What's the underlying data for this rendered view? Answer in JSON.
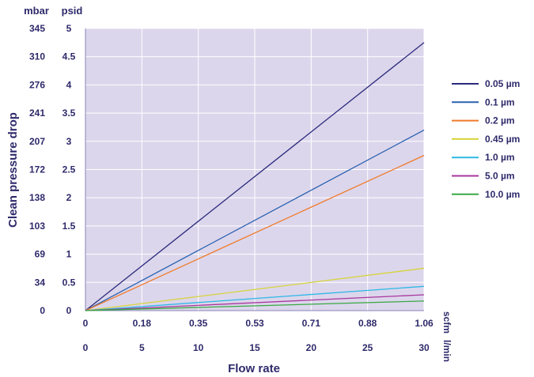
{
  "chart_data": {
    "type": "line",
    "ylabel": "Clean pressure drop",
    "xlabel": "Flow rate",
    "y_units": [
      "mbar",
      "psid"
    ],
    "x_units": [
      "scfm",
      "l/min"
    ],
    "psid_ticks": [
      "0",
      "0.5",
      "1",
      "1.5",
      "2",
      "2.5",
      "3",
      "3.5",
      "4",
      "4.5",
      "5"
    ],
    "mbar_ticks": [
      "0",
      "34",
      "69",
      "103",
      "138",
      "172",
      "207",
      "241",
      "276",
      "310",
      "345"
    ],
    "scfm_ticks": [
      "0",
      "0.18",
      "0.35",
      "0.53",
      "0.71",
      "0.88",
      "1.06"
    ],
    "lmin_ticks": [
      "0",
      "5",
      "10",
      "15",
      "20",
      "25",
      "30"
    ],
    "xlim": [
      0,
      30
    ],
    "ylim": [
      0,
      5
    ],
    "grid": true,
    "legend_position": "right",
    "x": [
      0,
      30
    ],
    "series": [
      {
        "name": "0.05 µm",
        "values": [
          0,
          4.75
        ],
        "color": "#2b2a7c"
      },
      {
        "name": "0.1 µm",
        "values": [
          0,
          3.2
        ],
        "color": "#2a62b0"
      },
      {
        "name": "0.2 µm",
        "values": [
          0,
          2.75
        ],
        "color": "#f07b2a"
      },
      {
        "name": "0.45 µm",
        "values": [
          0,
          0.75
        ],
        "color": "#d6d43a"
      },
      {
        "name": "1.0 µm",
        "values": [
          0,
          0.43
        ],
        "color": "#2fb8e6"
      },
      {
        "name": "5.0 µm",
        "values": [
          0,
          0.28
        ],
        "color": "#a8379c"
      },
      {
        "name": "10.0 µm",
        "values": [
          0,
          0.17
        ],
        "color": "#3aa843"
      }
    ],
    "colors": {
      "plot_background": "#dcd6ec",
      "grid": "#ffffff",
      "text": "#2e2a6b"
    }
  }
}
